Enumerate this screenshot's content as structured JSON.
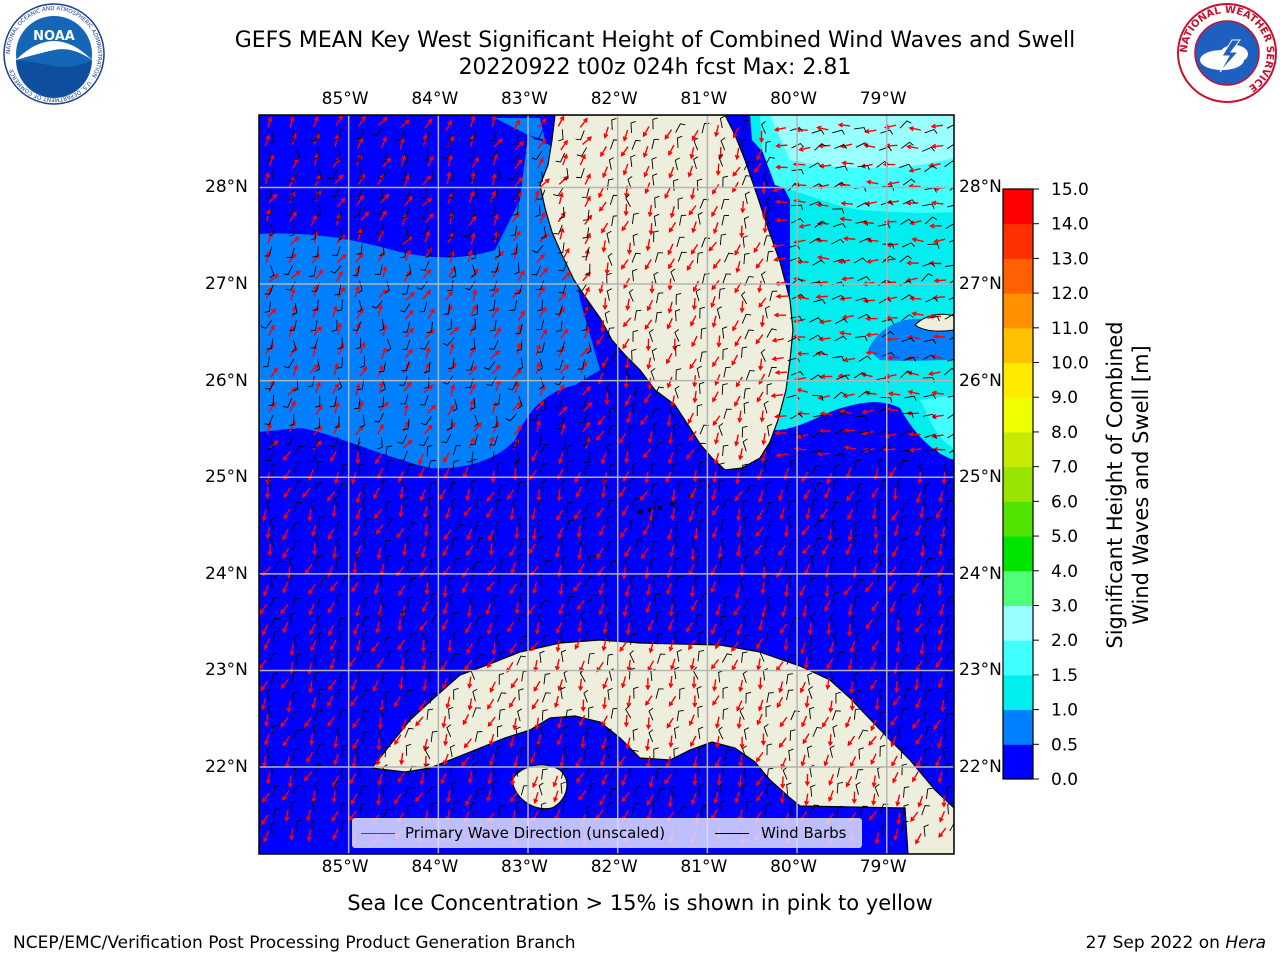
{
  "title_line1": "GEFS MEAN Key West Significant Height of Combined Wind Waves and Swell",
  "title_line2": "20220922 t00z 024h fcst   Max: 2.81",
  "lon_labels": [
    "85°W",
    "84°W",
    "83°W",
    "82°W",
    "81°W",
    "80°W",
    "79°W"
  ],
  "lat_labels": [
    "22°N",
    "23°N",
    "24°N",
    "25°N",
    "26°N",
    "27°N",
    "28°N"
  ],
  "extent": {
    "lon_min": -86.0,
    "lon_max": -78.25,
    "lat_min": 21.1,
    "lat_max": 28.75
  },
  "legend": {
    "wave_label": "Primary Wave Direction (unscaled)",
    "wave_color": "#ff0000",
    "wind_label": "Wind Barbs",
    "wind_color": "#000000"
  },
  "colorbar": {
    "title_line1": "Significant Height of Combined",
    "title_line2": "Wind Waves and Swell [m]",
    "ticks": [
      "0.0",
      "0.5",
      "1.0",
      "1.5",
      "2.0",
      "3.0",
      "4.0",
      "5.0",
      "6.0",
      "7.0",
      "8.0",
      "9.0",
      "10.0",
      "11.0",
      "12.0",
      "13.0",
      "14.0",
      "15.0"
    ],
    "colors": [
      "#0000ff",
      "#0080ff",
      "#00eeee",
      "#40ffff",
      "#99ffff",
      "#50ff78",
      "#00e400",
      "#50e400",
      "#99e400",
      "#c8ea00",
      "#eeff00",
      "#ffea00",
      "#ffc000",
      "#ff9000",
      "#ff6000",
      "#ff3000",
      "#ff0000"
    ]
  },
  "land_color": "#eeeedc",
  "footer_note": "Sea Ice Concentration > 15% is shown in pink to yellow",
  "credit": "NCEP/EMC/Verification Post Processing Product Generation Branch",
  "date_text": "27 Sep 2022 on ",
  "date_host": "Hera",
  "logos": {
    "noaa_text": "NOAA",
    "nws_text": "NATIONAL WEATHER SERVICE",
    "noaa_ring_text": "NATIONAL OCEANIC AND ATMOSPHERIC ADMINISTRATION · U.S. DEPARTMENT OF COMMERCE"
  }
}
